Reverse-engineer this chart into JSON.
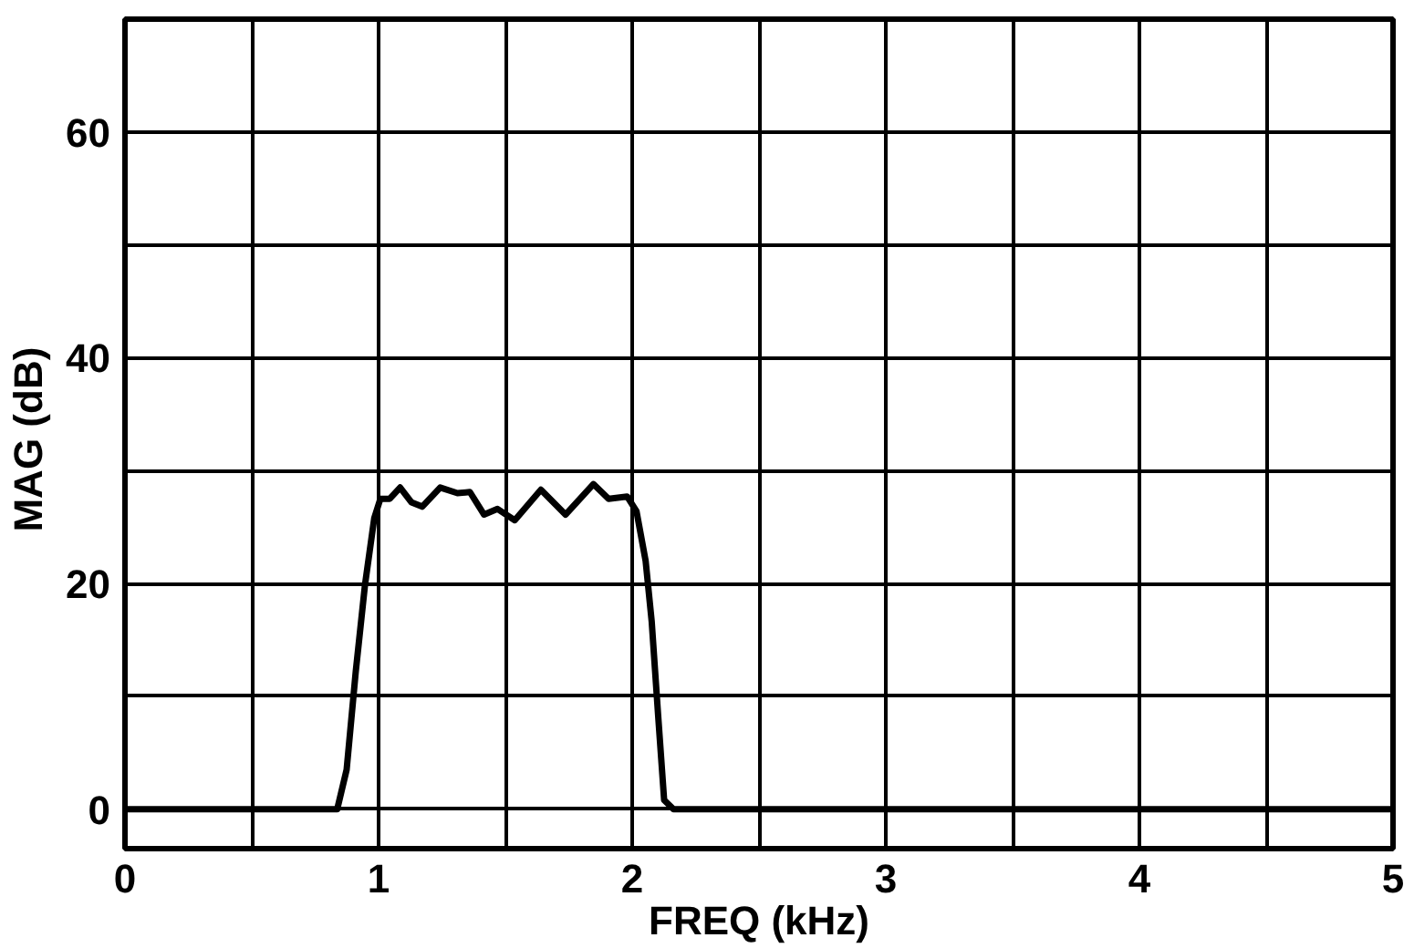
{
  "chart_data": {
    "type": "line",
    "xlabel": "FREQ (kHz)",
    "ylabel": "MAG  (dB)",
    "x": [
      0,
      0.837,
      0.874,
      0.91,
      0.946,
      0.983,
      1.007,
      1.044,
      1.085,
      1.129,
      1.172,
      1.243,
      1.311,
      1.36,
      1.416,
      1.469,
      1.537,
      1.64,
      1.737,
      1.847,
      1.907,
      1.98,
      2.017,
      2.053,
      2.077,
      2.102,
      2.126,
      2.163,
      5
    ],
    "series": [
      {
        "color": "#000000",
        "values": [
          0,
          0,
          3.5,
          12.2,
          19.8,
          25.8,
          27.5,
          27.5,
          28.5,
          27.2,
          26.8,
          28.5,
          28.0,
          28.1,
          26.1,
          26.6,
          25.6,
          28.3,
          26.1,
          28.8,
          27.5,
          27.7,
          26.4,
          22.0,
          16.6,
          8.4,
          0.8,
          0,
          0
        ]
      }
    ],
    "xlim": [
      0,
      5
    ],
    "ylim": [
      -3.5,
      70
    ],
    "xticks": [
      0,
      {
        "value": 0.5,
        "label": null
      },
      1,
      {
        "value": 1.5,
        "label": null
      },
      2,
      {
        "value": 2.5,
        "label": null
      },
      3,
      {
        "value": 3.5,
        "label": null
      },
      4,
      {
        "value": 4.5,
        "label": null
      },
      5
    ],
    "yticks": [
      0,
      {
        "value": 10,
        "label": null
      },
      20,
      {
        "value": 30,
        "label": null
      },
      40,
      {
        "value": 50,
        "label": null
      },
      60,
      {
        "value": 70,
        "label": null
      }
    ],
    "grid": true,
    "line_style": "solid"
  }
}
